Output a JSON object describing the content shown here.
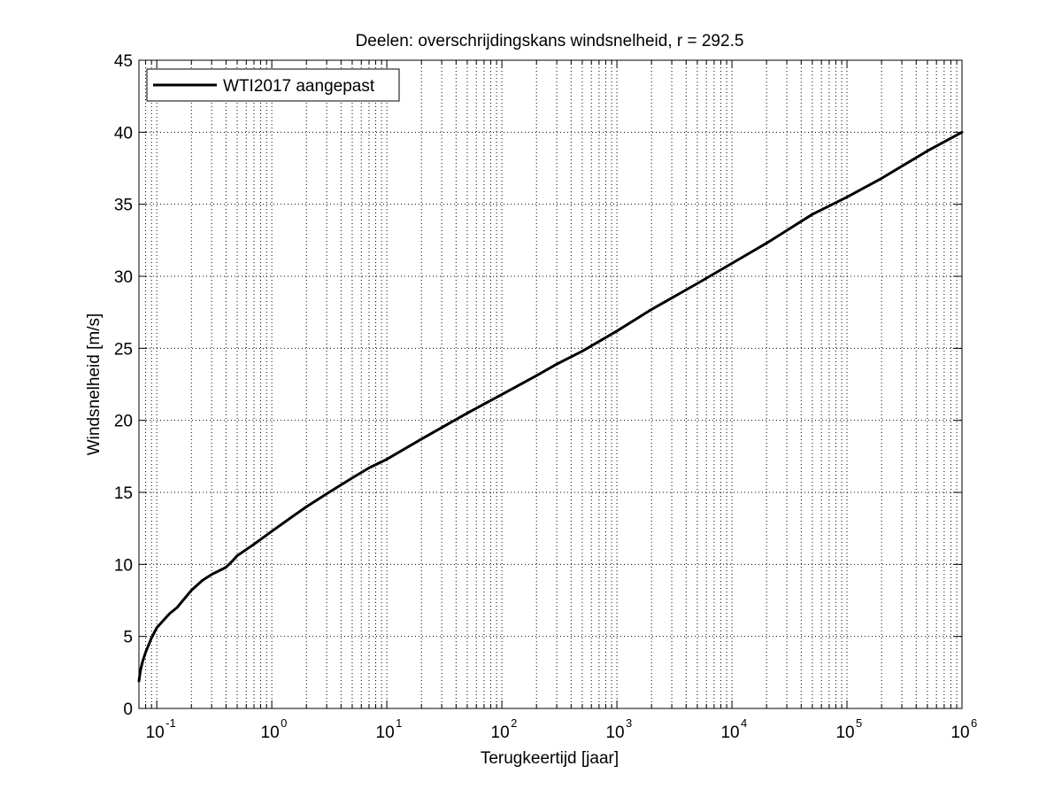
{
  "chart_data": {
    "type": "line",
    "title": "Deelen: overschrijdingskans windsnelheid, r = 292.5",
    "xlabel": "Terugkeertijd [jaar]",
    "ylabel": "Windsnelheid [m/s]",
    "xscale": "log",
    "xlim": [
      0.07,
      1000000
    ],
    "ylim": [
      0,
      45
    ],
    "grid": true,
    "legend_position": "top-left",
    "x_ticks": [
      {
        "base": "10",
        "exp": "-1"
      },
      {
        "base": "10",
        "exp": "0"
      },
      {
        "base": "10",
        "exp": "1"
      },
      {
        "base": "10",
        "exp": "2"
      },
      {
        "base": "10",
        "exp": "3"
      },
      {
        "base": "10",
        "exp": "4"
      },
      {
        "base": "10",
        "exp": "5"
      },
      {
        "base": "10",
        "exp": "6"
      }
    ],
    "y_ticks": [
      "0",
      "5",
      "10",
      "15",
      "20",
      "25",
      "30",
      "35",
      "40",
      "45"
    ],
    "series": [
      {
        "name": "WTI2017 aangepast",
        "color": "#000000",
        "x": [
          0.07,
          0.072,
          0.075,
          0.08,
          0.09,
          0.1,
          0.12,
          0.13,
          0.15,
          0.2,
          0.25,
          0.3,
          0.4,
          0.45,
          0.5,
          0.7,
          1,
          1.5,
          2,
          3,
          5,
          7,
          10,
          20,
          50,
          100,
          200,
          300,
          500,
          1000,
          2000,
          5000,
          10000,
          20000,
          50000,
          100000,
          200000,
          500000,
          1000000
        ],
        "y": [
          1.9,
          2.6,
          3.2,
          3.9,
          4.9,
          5.6,
          6.3,
          6.6,
          7.0,
          8.2,
          8.9,
          9.3,
          9.8,
          10.2,
          10.6,
          11.4,
          12.3,
          13.3,
          14.0,
          14.9,
          16.0,
          16.7,
          17.3,
          18.7,
          20.5,
          21.8,
          23.1,
          23.9,
          24.8,
          26.2,
          27.7,
          29.5,
          30.9,
          32.3,
          34.3,
          35.5,
          36.8,
          38.7,
          40.0
        ]
      }
    ]
  }
}
